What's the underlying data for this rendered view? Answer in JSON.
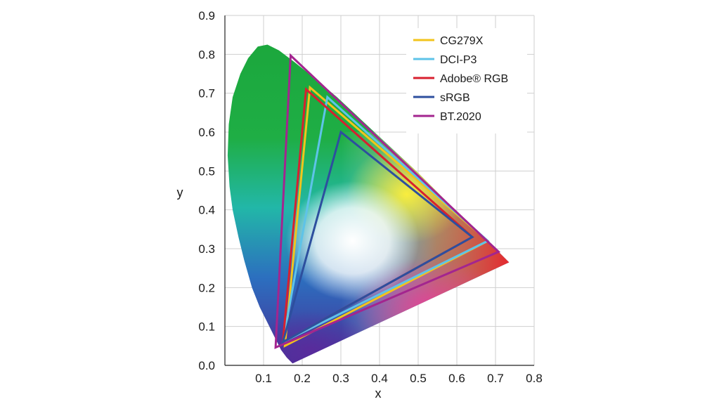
{
  "chart_data": {
    "type": "line",
    "xlabel": "x",
    "ylabel": "y",
    "xlim": [
      0,
      0.8
    ],
    "ylim": [
      0,
      0.9
    ],
    "x_ticks": [
      "0.1",
      "0.2",
      "0.3",
      "0.4",
      "0.5",
      "0.6",
      "0.7",
      "0.8"
    ],
    "y_ticks": [
      "0.0",
      "0.1",
      "0.2",
      "0.3",
      "0.4",
      "0.5",
      "0.6",
      "0.7",
      "0.8",
      "0.9"
    ],
    "grid": true,
    "legend_position": "top-right",
    "locus": [
      [
        0.175,
        0.005
      ],
      [
        0.16,
        0.02
      ],
      [
        0.145,
        0.04
      ],
      [
        0.13,
        0.07
      ],
      [
        0.115,
        0.1
      ],
      [
        0.09,
        0.15
      ],
      [
        0.07,
        0.2
      ],
      [
        0.05,
        0.27
      ],
      [
        0.035,
        0.33
      ],
      [
        0.02,
        0.4
      ],
      [
        0.012,
        0.46
      ],
      [
        0.007,
        0.54
      ],
      [
        0.01,
        0.62
      ],
      [
        0.02,
        0.69
      ],
      [
        0.04,
        0.75
      ],
      [
        0.06,
        0.79
      ],
      [
        0.085,
        0.82
      ],
      [
        0.11,
        0.825
      ],
      [
        0.14,
        0.81
      ],
      [
        0.18,
        0.78
      ],
      [
        0.23,
        0.74
      ],
      [
        0.29,
        0.69
      ],
      [
        0.36,
        0.625
      ],
      [
        0.43,
        0.56
      ],
      [
        0.5,
        0.495
      ],
      [
        0.57,
        0.425
      ],
      [
        0.64,
        0.355
      ],
      [
        0.7,
        0.3
      ],
      [
        0.735,
        0.265
      ]
    ],
    "series": [
      {
        "name": "CG279X",
        "color": "#f2c41c",
        "points": [
          [
            0.68,
            0.32
          ],
          [
            0.22,
            0.715
          ],
          [
            0.155,
            0.05
          ]
        ]
      },
      {
        "name": "DCI-P3",
        "color": "#5ec3e8",
        "points": [
          [
            0.68,
            0.32
          ],
          [
            0.265,
            0.69
          ],
          [
            0.15,
            0.06
          ]
        ]
      },
      {
        "name": "Adobe® RGB",
        "color": "#d8202f",
        "points": [
          [
            0.64,
            0.33
          ],
          [
            0.21,
            0.71
          ],
          [
            0.15,
            0.06
          ]
        ]
      },
      {
        "name": "sRGB",
        "color": "#2d4f9e",
        "points": [
          [
            0.64,
            0.33
          ],
          [
            0.3,
            0.6
          ],
          [
            0.15,
            0.06
          ]
        ]
      },
      {
        "name": "BT.2020",
        "color": "#a3258f",
        "points": [
          [
            0.708,
            0.292
          ],
          [
            0.17,
            0.797
          ],
          [
            0.131,
            0.046
          ]
        ]
      }
    ]
  }
}
